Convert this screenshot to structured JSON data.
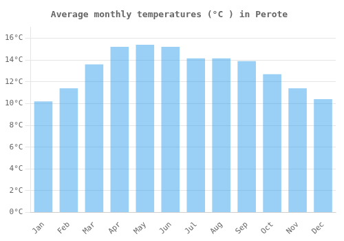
{
  "chart_data": {
    "type": "bar",
    "title": "Average monthly temperatures (°C ) in Perote",
    "categories": [
      "Jan",
      "Feb",
      "Mar",
      "Apr",
      "May",
      "Jun",
      "Jul",
      "Aug",
      "Sep",
      "Oct",
      "Nov",
      "Dec"
    ],
    "values": [
      10.2,
      11.4,
      13.6,
      15.2,
      15.4,
      15.2,
      14.15,
      14.15,
      13.9,
      12.7,
      11.4,
      10.4
    ],
    "ylim": [
      0,
      17
    ],
    "yticks": [
      {
        "value": 0,
        "label": "0°C"
      },
      {
        "value": 2,
        "label": "2°C"
      },
      {
        "value": 4,
        "label": "4°C"
      },
      {
        "value": 6,
        "label": "6°C"
      },
      {
        "value": 8,
        "label": "8°C"
      },
      {
        "value": 10,
        "label": "10°C"
      },
      {
        "value": 12,
        "label": "12°C"
      },
      {
        "value": 14,
        "label": "14°C"
      },
      {
        "value": 16,
        "label": "16°C"
      }
    ],
    "grid": true
  }
}
